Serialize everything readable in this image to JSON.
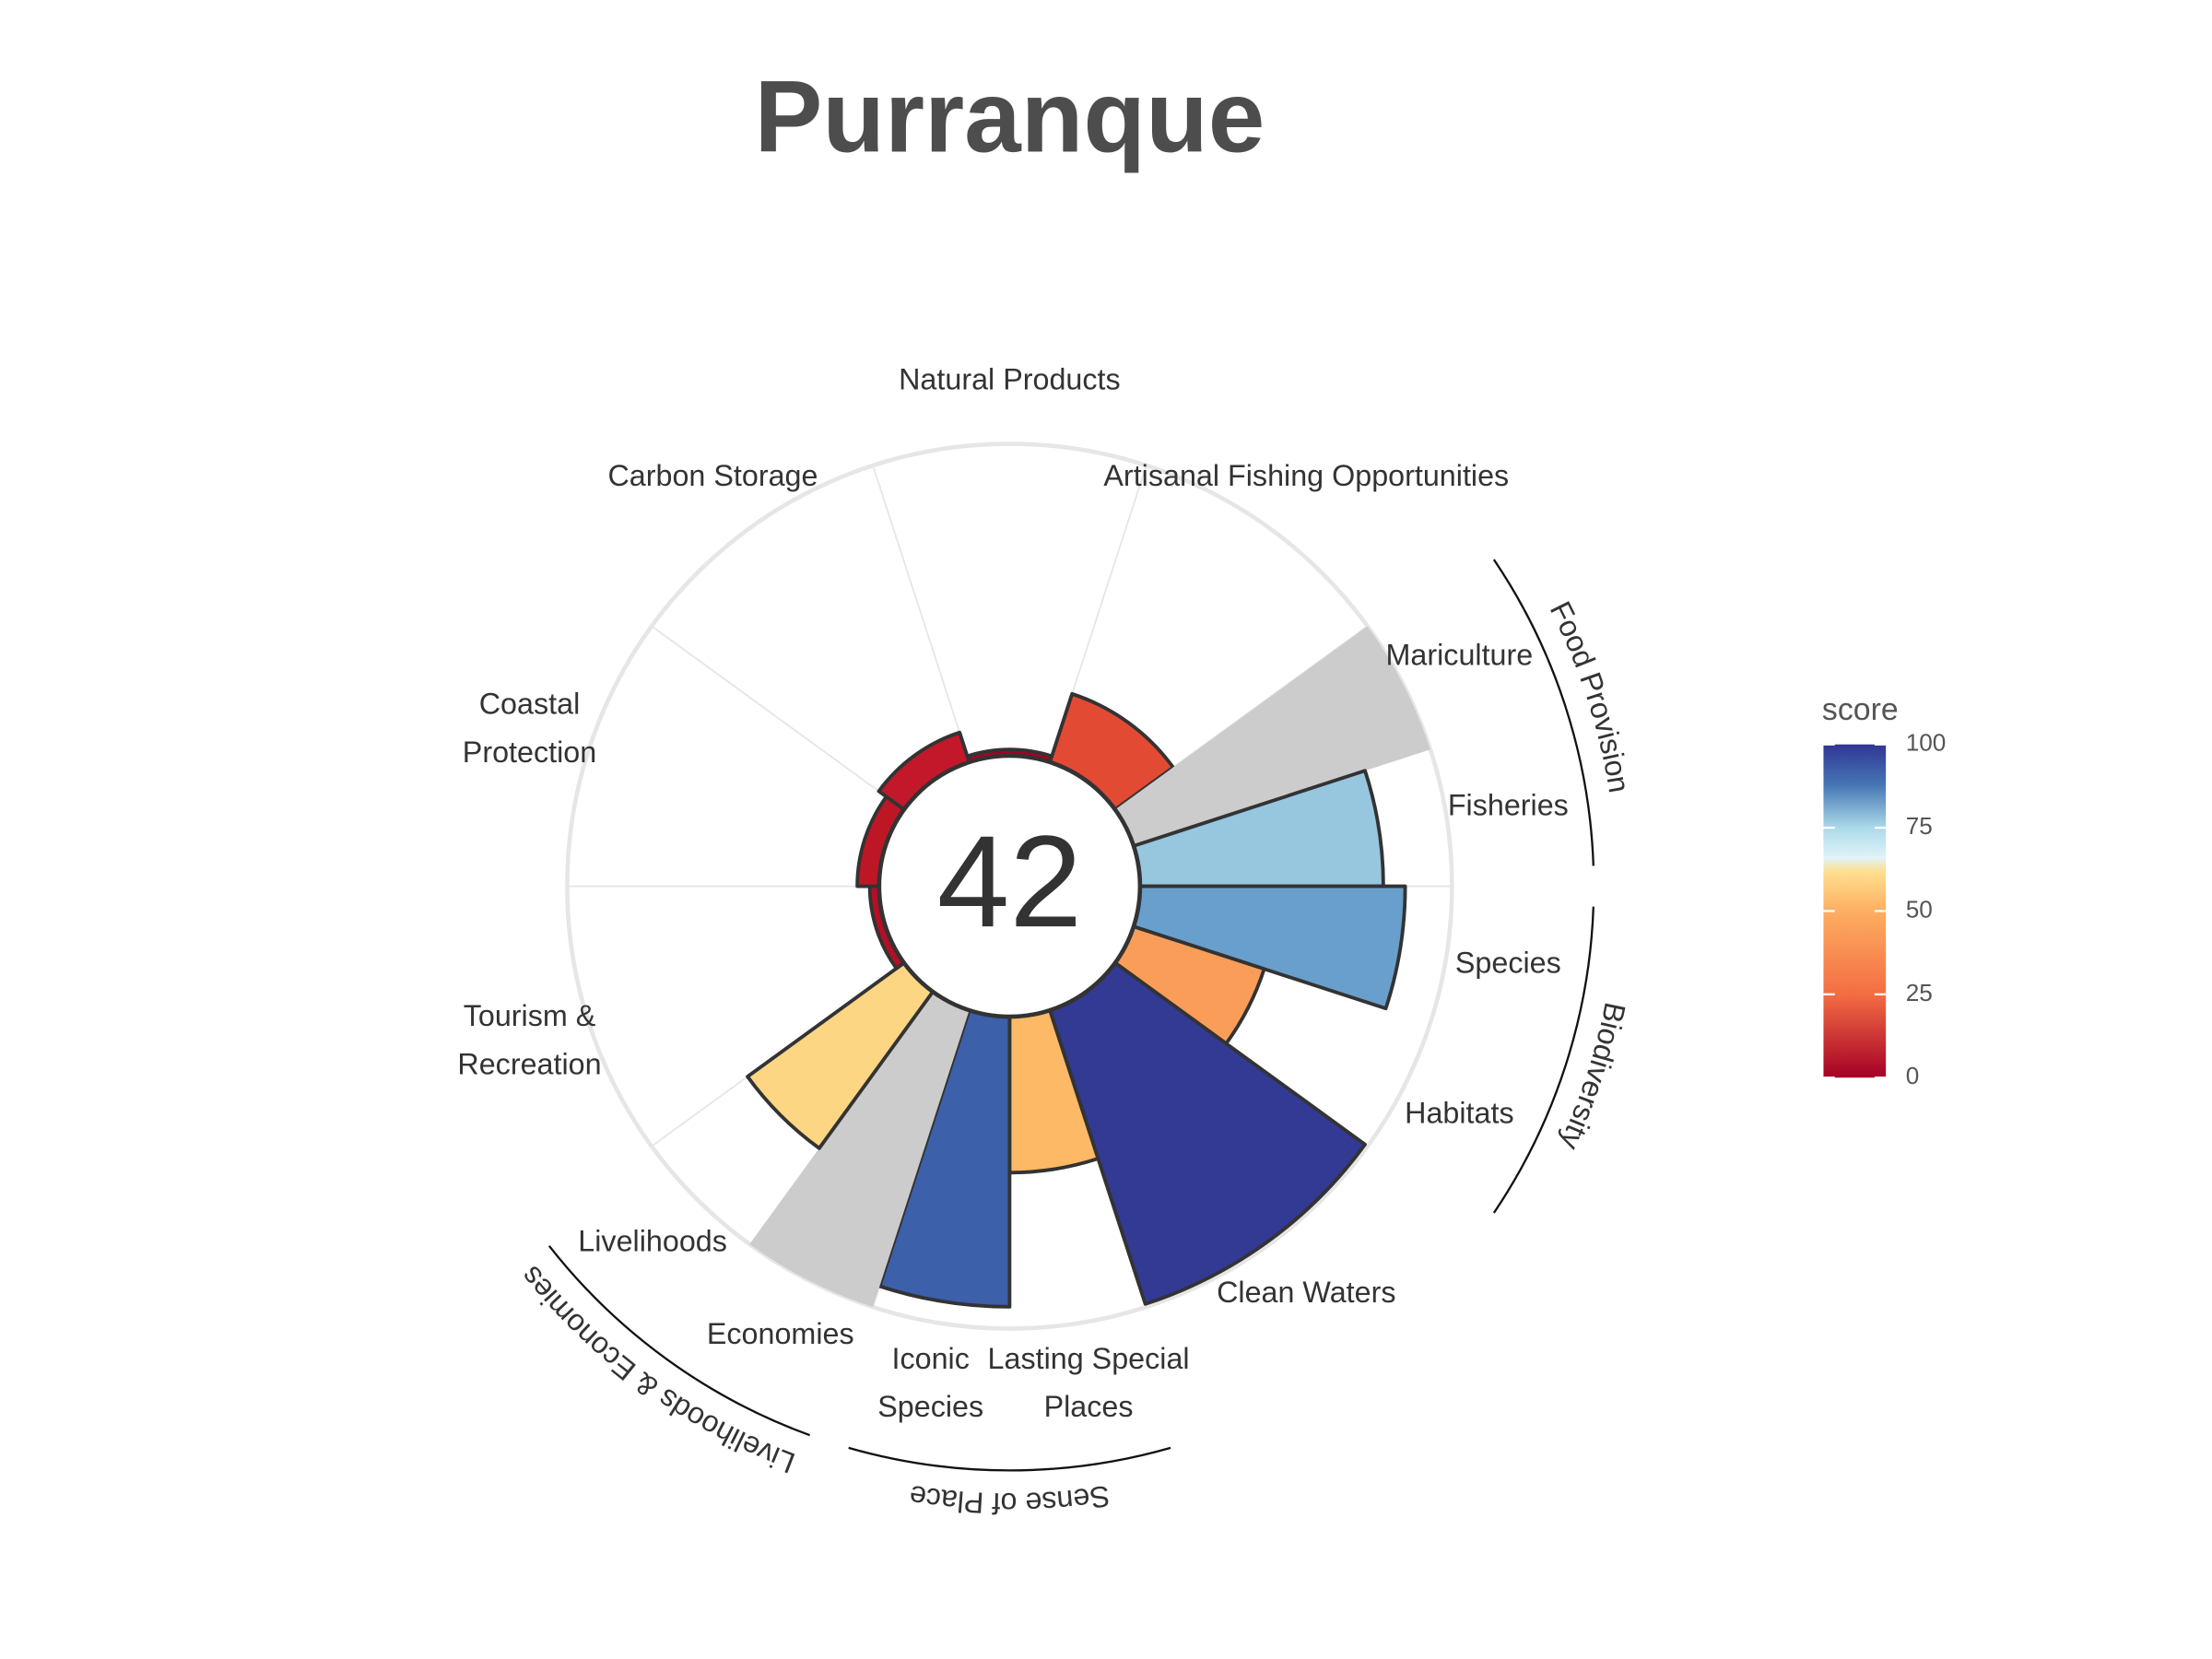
{
  "chart_data": {
    "type": "flower",
    "title": "Purranque",
    "score": 42,
    "categories": [
      [
        "Natural Products"
      ],
      [
        "Artisanal Fishing Opportunities"
      ],
      [
        "Mariculture"
      ],
      [
        "Fisheries"
      ],
      [
        "Species"
      ],
      [
        "Habitats"
      ],
      [
        "Clean Waters"
      ],
      [
        "Lasting Special",
        "Places"
      ],
      [
        "Iconic",
        "Species"
      ],
      [
        "Economies"
      ],
      [
        "Livelihoods"
      ],
      [
        "Tourism &",
        "Recreation"
      ],
      [
        "Coastal",
        "Protection"
      ],
      [
        "Carbon Storage"
      ]
    ],
    "values": [
      2,
      23,
      null,
      78,
      85,
      44,
      99,
      50,
      93,
      null,
      62,
      3,
      7,
      10
    ],
    "colors": [
      "#a50026",
      "#e34a33",
      "#cccccc",
      "#97c6df",
      "#699fcc",
      "#f99d59",
      "#323a94",
      "#fdb966",
      "#3c60aa",
      "#cccccc",
      "#fdd683",
      "#b50f26",
      "#bd1726",
      "#c3182a"
    ],
    "groups": [
      {
        "name": "Food Provision"
      },
      {
        "name": "Biodiversity"
      },
      {
        "name": "Sense of Place"
      },
      {
        "name": "Livelihoods & Economies"
      }
    ],
    "ylim": [
      0,
      100
    ],
    "grid": true,
    "legend": {
      "title": "score",
      "lim": [
        0,
        100
      ],
      "ticks": [
        0,
        25,
        50,
        75,
        100
      ]
    }
  }
}
